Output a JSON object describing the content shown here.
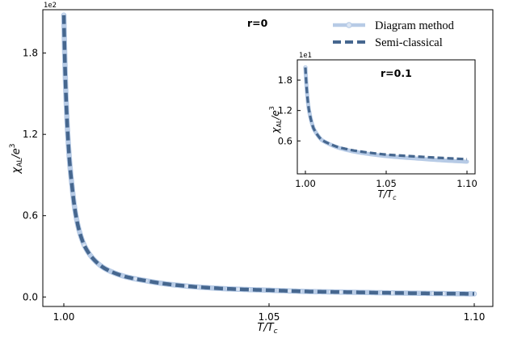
{
  "chart_data": [
    {
      "type": "line",
      "xlabel": "T/T_c",
      "ylabel": "χ_AL/e^3",
      "xlim": [
        1.0,
        1.1
      ],
      "ylim": [
        -7,
        212
      ],
      "y_exponent_label": "1e2",
      "y_scale_factor": 100,
      "xticks": [
        "1.00",
        "1.05",
        "1.10"
      ],
      "yticks": [
        "0.0",
        "0.6",
        "1.2",
        "1.8"
      ],
      "annotation": "r=0",
      "series": [
        {
          "name": "Diagram method",
          "color": "#b7cbe6",
          "style": "solid with circle markers",
          "x": [
            1.0,
            1.002,
            1.005,
            1.01,
            1.015,
            1.02,
            1.03,
            1.04,
            1.05,
            1.06,
            1.07,
            1.08,
            1.09,
            1.1
          ],
          "values": [
            208,
            82,
            38,
            21,
            15,
            12,
            8,
            6,
            5,
            4,
            3.5,
            3,
            2.6,
            2.3
          ]
        },
        {
          "name": "Semi-classical",
          "color": "#46678f",
          "style": "dashed",
          "x": [
            1.0,
            1.002,
            1.005,
            1.01,
            1.015,
            1.02,
            1.03,
            1.04,
            1.05,
            1.06,
            1.07,
            1.08,
            1.09,
            1.1
          ],
          "values": [
            208,
            82,
            38,
            21,
            15,
            12,
            8,
            6,
            5,
            4,
            3.5,
            3,
            2.6,
            2.3
          ]
        }
      ],
      "legend": {
        "placement": "top-right",
        "entries": [
          "Diagram method",
          "Semi-classical"
        ]
      }
    },
    {
      "type": "line",
      "role": "inset",
      "xlabel": "T/T_c",
      "ylabel": "χ_AL/e^3",
      "xlim": [
        0.995,
        1.105
      ],
      "ylim": [
        -0.5,
        22
      ],
      "y_exponent_label": "1e1",
      "y_scale_factor": 10,
      "xticks": [
        "1.00",
        "1.05",
        "1.10"
      ],
      "yticks": [
        "0.6",
        "1.2",
        "1.8"
      ],
      "annotation": "r=0.1",
      "series": [
        {
          "name": "Diagram method",
          "color": "#b7cbe6",
          "style": "solid with circle markers",
          "x": [
            1.0,
            1.002,
            1.005,
            1.01,
            1.02,
            1.03,
            1.05,
            1.07,
            1.1
          ],
          "values": [
            20.5,
            12.5,
            8.5,
            6.2,
            4.7,
            3.9,
            3.0,
            2.5,
            1.9
          ]
        },
        {
          "name": "Semi-classical",
          "color": "#46678f",
          "style": "dashed",
          "x": [
            1.0,
            1.002,
            1.005,
            1.01,
            1.02,
            1.03,
            1.05,
            1.07,
            1.1
          ],
          "values": [
            20.5,
            12.5,
            8.5,
            6.2,
            4.8,
            4.1,
            3.3,
            2.9,
            2.4
          ]
        }
      ]
    }
  ]
}
